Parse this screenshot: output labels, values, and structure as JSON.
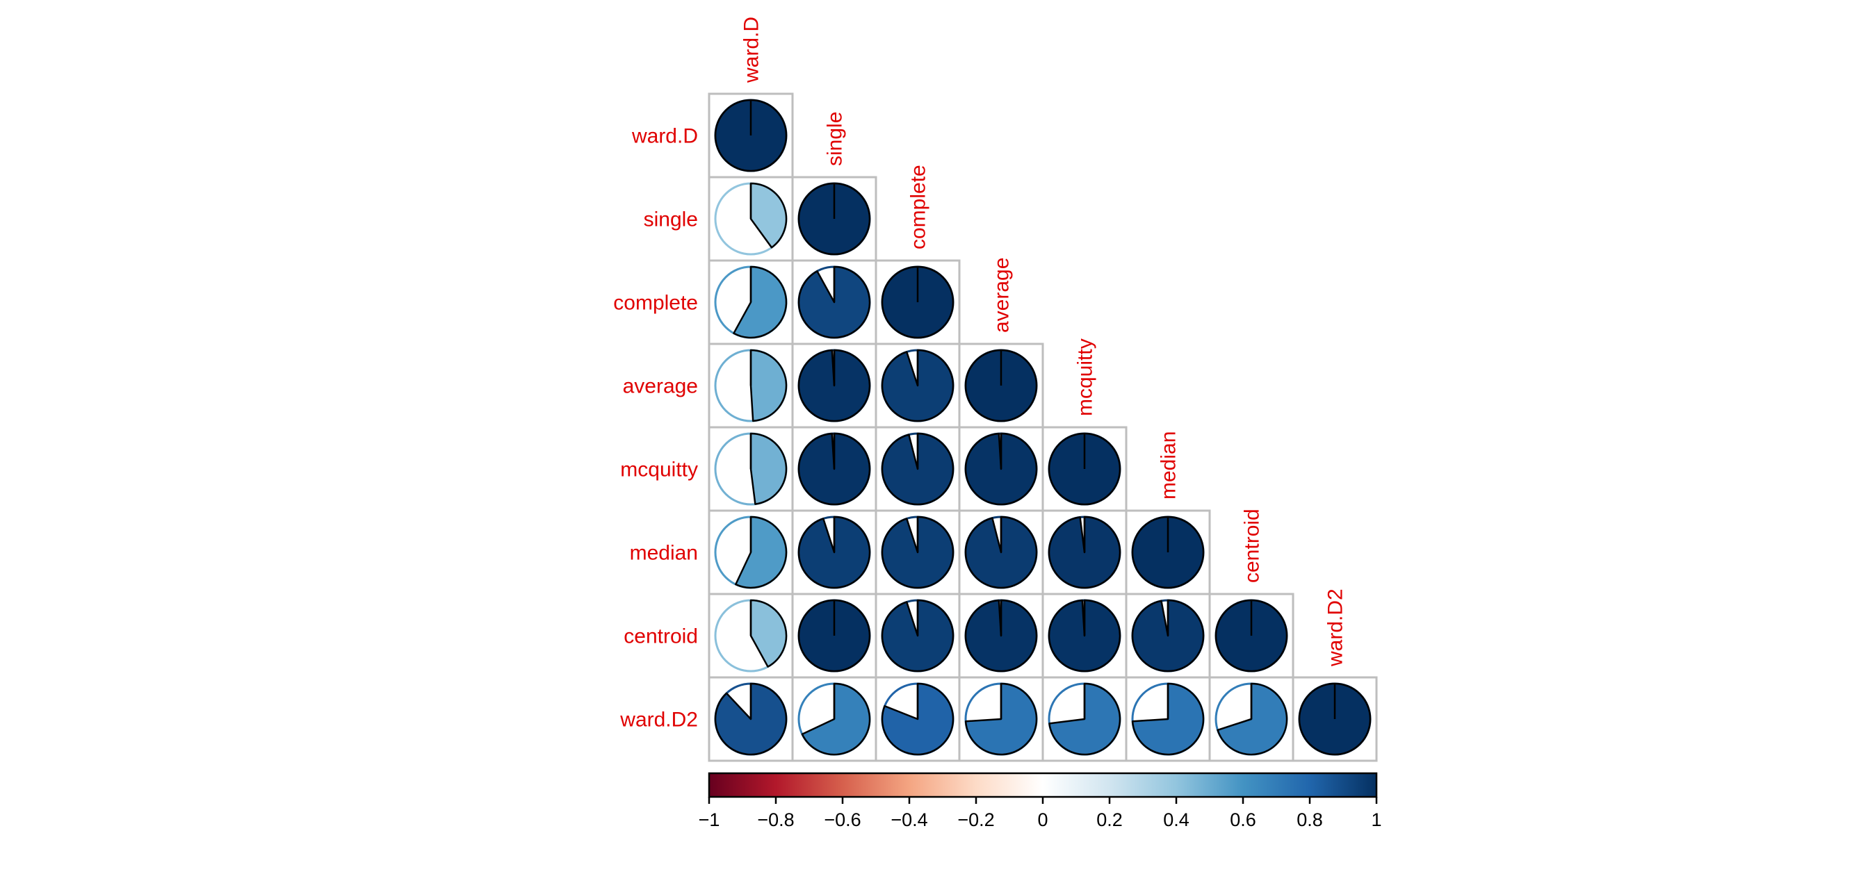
{
  "chart_data": {
    "type": "heatmap",
    "variables": [
      "ward.D",
      "single",
      "complete",
      "average",
      "mcquitty",
      "median",
      "centroid",
      "ward.D2"
    ],
    "matrix_shape": "lower",
    "glyph": "pie",
    "correlations": [
      [
        1.0
      ],
      [
        0.4,
        1.0
      ],
      [
        0.58,
        0.92,
        1.0
      ],
      [
        0.49,
        0.99,
        0.95,
        1.0
      ],
      [
        0.48,
        0.99,
        0.96,
        0.99,
        1.0
      ],
      [
        0.57,
        0.95,
        0.95,
        0.96,
        0.98,
        1.0
      ],
      [
        0.42,
        1.0,
        0.95,
        0.99,
        0.99,
        0.97,
        1.0
      ],
      [
        0.88,
        0.68,
        0.81,
        0.74,
        0.73,
        0.74,
        0.7,
        1.0
      ]
    ],
    "color_scale": {
      "min": -1,
      "max": 1,
      "colors": [
        "#67001F",
        "#B2182B",
        "#D6604D",
        "#F4A582",
        "#FDDBC7",
        "#FFFFFF",
        "#D1E5F0",
        "#92C5DE",
        "#4393C3",
        "#2166AC",
        "#053061"
      ],
      "ticks": [
        -1,
        -0.8,
        -0.6,
        -0.4,
        -0.2,
        0,
        0.2,
        0.4,
        0.6,
        0.8,
        1
      ],
      "tick_labels": [
        "−1",
        "−0.8",
        "−0.6",
        "−0.4",
        "−0.2",
        "0",
        "0.2",
        "0.4",
        "0.6",
        "0.8",
        "1"
      ]
    },
    "label_color": "#E00000",
    "grid_color": "#BEBEBE",
    "legend_position": "bottom"
  }
}
